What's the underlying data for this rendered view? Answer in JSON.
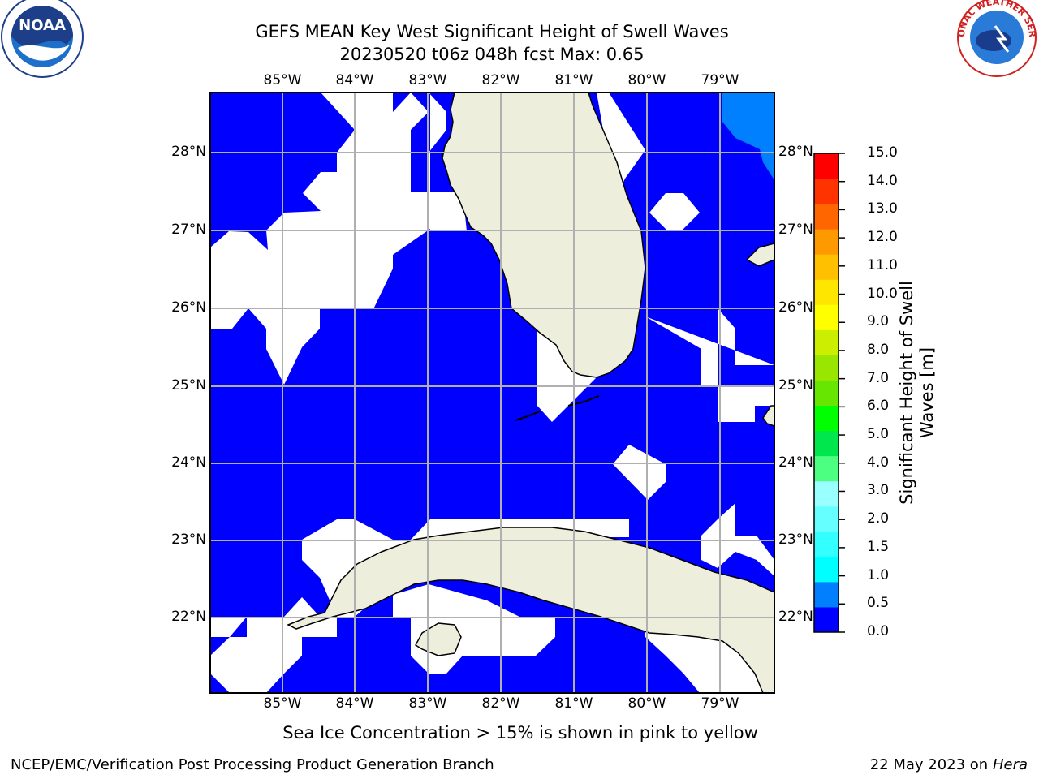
{
  "title_line1": "GEFS MEAN Key West Significant Height of Swell Waves",
  "title_line2": "20230520 t06z 048h fcst   Max: 0.65",
  "lon_labels": [
    "85°W",
    "84°W",
    "83°W",
    "82°W",
    "81°W",
    "80°W",
    "79°W"
  ],
  "lat_labels": [
    "28°N",
    "27°N",
    "26°N",
    "25°N",
    "24°N",
    "23°N",
    "22°N"
  ],
  "colorbar": {
    "label": "Significant Height of Swell Waves [m]",
    "ticks": [
      "15.0",
      "14.0",
      "13.0",
      "12.0",
      "11.0",
      "10.0",
      "9.0",
      "8.0",
      "7.0",
      "6.0",
      "5.0",
      "4.0",
      "3.0",
      "2.0",
      "1.5",
      "1.0",
      "0.5",
      "0.0"
    ],
    "colors": [
      "#0000ff",
      "#0080ff",
      "#00ffff",
      "#33ffff",
      "#66ffff",
      "#99ffff",
      "#4dff80",
      "#00e64d",
      "#00ff00",
      "#66e600",
      "#99e600",
      "#ccee00",
      "#ffff00",
      "#ffe600",
      "#ffc000",
      "#ff9900",
      "#ff6600",
      "#ff3300",
      "#ff0000"
    ]
  },
  "subtitle": "Sea Ice Concentration > 15% is shown in pink to yellow",
  "footer_left": "NCEP/EMC/Verification Post Processing Product Generation Branch",
  "footer_right_date": "22 May 2023 on",
  "footer_right_host": "Hera",
  "colors": {
    "swell": "#0000ff",
    "swell_high": "#0080ff",
    "land": "#eeeedd",
    "grid": "#b0b0b0"
  },
  "logos": {
    "left": "NOAA",
    "right": "NATIONAL WEATHER SERVICE"
  }
}
